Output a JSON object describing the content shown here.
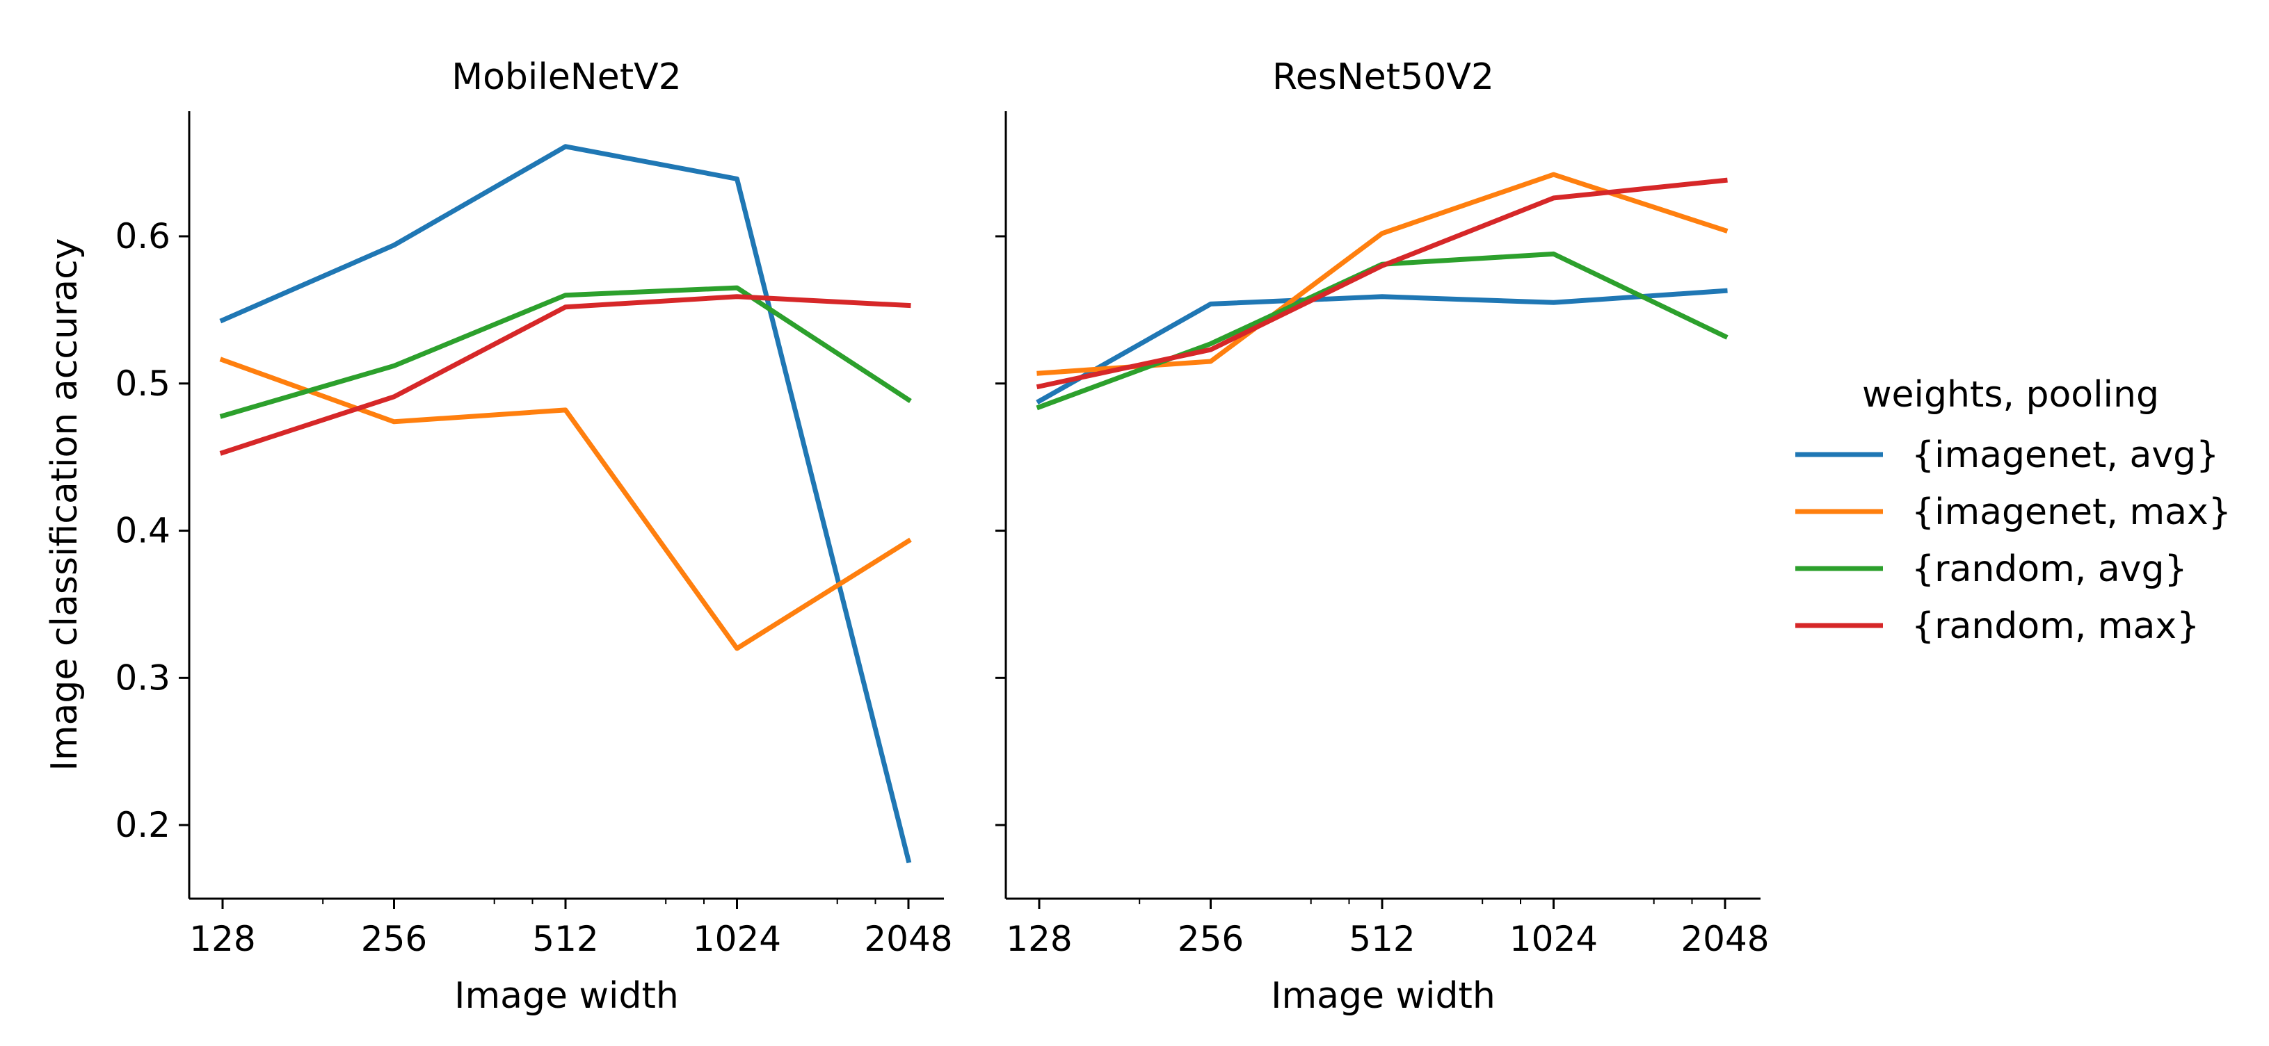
{
  "chart_data": {
    "type": "line",
    "ylabel": "Image classification accuracy",
    "ylim": [
      0.15,
      0.685
    ],
    "yticks": [
      0.2,
      0.3,
      0.4,
      0.5,
      0.6
    ],
    "ytick_labels": [
      "0.2",
      "0.3",
      "0.4",
      "0.5",
      "0.6"
    ],
    "x": [
      128,
      256,
      512,
      1024,
      2048
    ],
    "xscale": "log2",
    "xlim": [
      110,
      2400
    ],
    "x_tick_labels": [
      "128",
      "256",
      "512",
      "1024",
      "2048"
    ],
    "minor_xticks": [
      192,
      384,
      448,
      768,
      896,
      1536,
      1792
    ],
    "legend": {
      "title": "weights, pooling",
      "placement": "right",
      "entries": [
        {
          "name": "{imagenet, avg}",
          "color": "#1f77b4"
        },
        {
          "name": "{imagenet, max}",
          "color": "#ff7f0e"
        },
        {
          "name": "{random, avg}",
          "color": "#2ca02c"
        },
        {
          "name": "{random, max}",
          "color": "#d62728"
        }
      ]
    },
    "panels": [
      {
        "title": "MobileNetV2",
        "xlabel": "Image width",
        "series": [
          {
            "name": "{imagenet, avg}",
            "values": [
              0.543,
              0.594,
              0.661,
              0.639,
              0.176
            ]
          },
          {
            "name": "{imagenet, max}",
            "values": [
              0.516,
              0.474,
              0.482,
              0.32,
              0.393
            ]
          },
          {
            "name": "{random, avg}",
            "values": [
              0.478,
              0.512,
              0.56,
              0.565,
              0.489
            ]
          },
          {
            "name": "{random, max}",
            "values": [
              0.453,
              0.491,
              0.552,
              0.559,
              0.553
            ]
          }
        ]
      },
      {
        "title": "ResNet50V2",
        "xlabel": "Image width",
        "series": [
          {
            "name": "{imagenet, avg}",
            "values": [
              0.488,
              0.554,
              0.559,
              0.555,
              0.563
            ]
          },
          {
            "name": "{imagenet, max}",
            "values": [
              0.507,
              0.515,
              0.602,
              0.642,
              0.604
            ]
          },
          {
            "name": "{random, avg}",
            "values": [
              0.484,
              0.527,
              0.581,
              0.588,
              0.532
            ]
          },
          {
            "name": "{random, max}",
            "values": [
              0.498,
              0.523,
              0.58,
              0.626,
              0.638
            ]
          }
        ]
      }
    ]
  }
}
